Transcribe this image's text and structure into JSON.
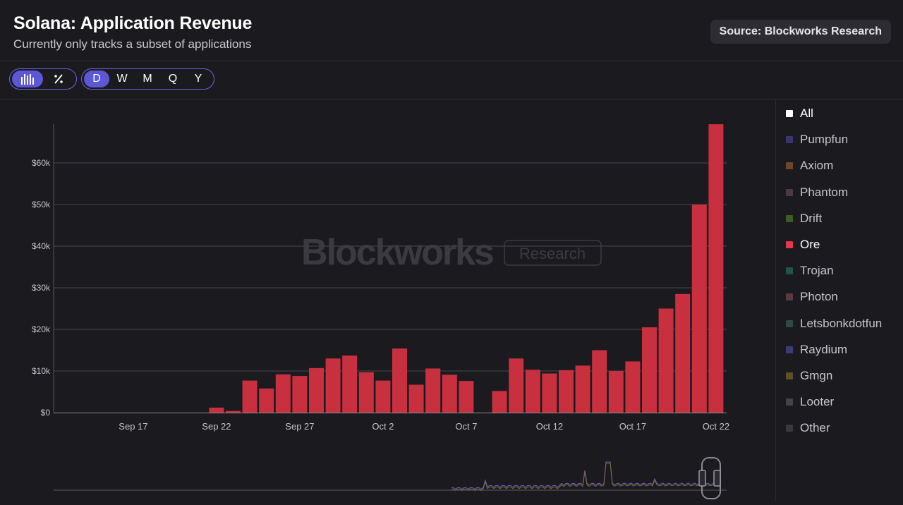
{
  "header": {
    "title": "Solana: Application Revenue",
    "subtitle": "Currently only tracks a subset of applications",
    "source_label": "Source: Blockworks Research"
  },
  "controls": {
    "view_toggle": [
      {
        "icon": "bar-chart-icon",
        "active": true
      },
      {
        "icon": "percent-icon",
        "active": false
      }
    ],
    "periods": [
      {
        "label": "D",
        "active": true
      },
      {
        "label": "W",
        "active": false
      },
      {
        "label": "M",
        "active": false
      },
      {
        "label": "Q",
        "active": false
      },
      {
        "label": "Y",
        "active": false
      }
    ]
  },
  "watermark": {
    "brand": "Blockworks",
    "tag": "Research"
  },
  "legend": [
    {
      "label": "All",
      "color": "#ffffff",
      "active": true
    },
    {
      "label": "Pumpfun",
      "color": "#3a3470",
      "active": false
    },
    {
      "label": "Axiom",
      "color": "#6a4a26",
      "active": false
    },
    {
      "label": "Phantom",
      "color": "#4a3a48",
      "active": false
    },
    {
      "label": "Drift",
      "color": "#3e5a26",
      "active": false
    },
    {
      "label": "Ore",
      "color": "#e0394a",
      "active": true
    },
    {
      "label": "Trojan",
      "color": "#22524a",
      "active": false
    },
    {
      "label": "Photon",
      "color": "#5a3a40",
      "active": false
    },
    {
      "label": "Letsbonkdotfun",
      "color": "#2e4a44",
      "active": false
    },
    {
      "label": "Raydium",
      "color": "#3e3a7a",
      "active": false
    },
    {
      "label": "Gmgn",
      "color": "#5a5228",
      "active": false
    },
    {
      "label": "Looter",
      "color": "#444448",
      "active": false
    },
    {
      "label": "Other",
      "color": "#3a3a3e",
      "active": false
    }
  ],
  "chart_data": {
    "type": "bar",
    "series": [
      {
        "name": "Ore",
        "color": "#c8303f"
      }
    ],
    "x": [
      "Sep 13",
      "Sep 14",
      "Sep 15",
      "Sep 16",
      "Sep 17",
      "Sep 18",
      "Sep 19",
      "Sep 20",
      "Sep 21",
      "Sep 22",
      "Sep 23",
      "Sep 24",
      "Sep 25",
      "Sep 26",
      "Sep 27",
      "Sep 28",
      "Sep 29",
      "Sep 30",
      "Oct 1",
      "Oct 2",
      "Oct 3",
      "Oct 4",
      "Oct 5",
      "Oct 6",
      "Oct 7",
      "Oct 8",
      "Oct 9",
      "Oct 10",
      "Oct 11",
      "Oct 12",
      "Oct 13",
      "Oct 14",
      "Oct 15",
      "Oct 16",
      "Oct 17",
      "Oct 18",
      "Oct 19",
      "Oct 20",
      "Oct 21",
      "Oct 22"
    ],
    "values": [
      0,
      0,
      0,
      0,
      0,
      0,
      0,
      0,
      0,
      1200,
      400,
      7700,
      5800,
      9200,
      8800,
      10700,
      13000,
      13700,
      9700,
      7700,
      15400,
      6700,
      10600,
      9100,
      7600,
      0,
      5200,
      13000,
      10300,
      9400,
      10200,
      11300,
      15000,
      10000,
      12300,
      20500,
      25000,
      28500,
      50000,
      69300
    ],
    "ylim": [
      0,
      70000
    ],
    "yticks": [
      0,
      10000,
      20000,
      30000,
      40000,
      50000,
      60000
    ],
    "ytick_labels": [
      "$0",
      "$10k",
      "$20k",
      "$30k",
      "$40k",
      "$50k",
      "$60k"
    ],
    "xticks": [
      "Sep 17",
      "Sep 22",
      "Sep 27",
      "Oct 2",
      "Oct 7",
      "Oct 12",
      "Oct 17",
      "Oct 22"
    ],
    "grid": true,
    "legend_position": "right"
  }
}
